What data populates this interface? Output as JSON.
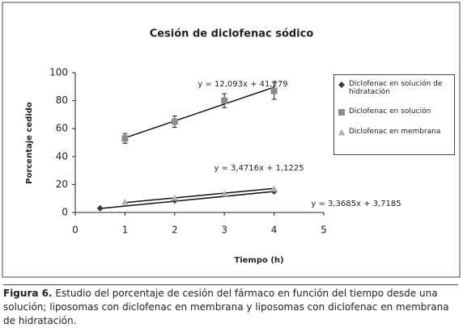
{
  "chart_data": {
    "type": "scatter",
    "title": "Cesión de diclofenac sódico",
    "x_label": "Tiempo (h)",
    "y_label": "Porcentaje cedido",
    "xlim": [
      0,
      5
    ],
    "xticks": [
      0,
      1,
      2,
      3,
      4,
      5
    ],
    "ylim": [
      0,
      100
    ],
    "yticks": [
      0,
      20,
      40,
      60,
      80,
      100
    ],
    "grid": false,
    "legend": "right",
    "series": [
      {
        "name": "Diclofenac en solución de hidratación",
        "color": "#3a3a3a",
        "marker": "diamond",
        "x": [
          0.5,
          2,
          4
        ],
        "values": [
          3,
          8.5,
          15
        ],
        "trendline": {
          "slope": 3.4716,
          "intercept": 1.1225,
          "label": "y = 3,4716x + 1,1225"
        }
      },
      {
        "name": "Diclofenac en solución",
        "color": "#8c8c8c",
        "marker": "square",
        "x": [
          1,
          2,
          3,
          4
        ],
        "values": [
          53,
          65,
          80,
          87
        ],
        "errors": [
          3.5,
          4,
          5,
          6
        ],
        "trendline": {
          "slope": 12.093,
          "intercept": 41.279,
          "label": "y = 12,093x + 41,279"
        }
      },
      {
        "name": "Diclofenac en membrana",
        "color": "#b0b0b0",
        "marker": "triangle",
        "x": [
          1,
          2,
          3,
          4
        ],
        "values": [
          7.5,
          10.5,
          13.5,
          17
        ],
        "trendline": {
          "slope": 3.3685,
          "intercept": 3.7185,
          "label": "y = 3,3685x + 3,7185"
        }
      }
    ]
  },
  "caption": {
    "label": "Figura 6.",
    "text": "Estudio del porcentaje de cesión del fármaco en función del tiempo desde una solución; liposomas con diclofenac en membrana y liposomas con diclofenac en membrana de hidratación."
  }
}
